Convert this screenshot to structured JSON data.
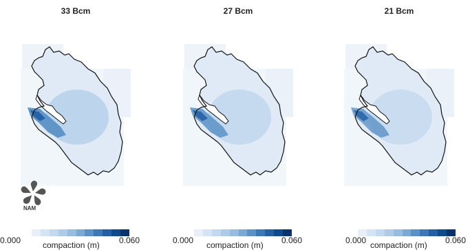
{
  "panels": [
    {
      "title": "33 Bcm",
      "intensity": 1.0
    },
    {
      "title": "27 Bcm",
      "intensity": 0.78
    },
    {
      "title": "21 Bcm",
      "intensity": 0.62
    }
  ],
  "colorbar": {
    "min_label": "0.000",
    "max_label": "0.060",
    "label": "compaction (m)",
    "colors": [
      "#e7eff9",
      "#d5e4f4",
      "#c3d9ef",
      "#aecce8",
      "#96bde0",
      "#7aa9d4",
      "#5b91c6",
      "#3d78b6",
      "#2360a3",
      "#0f4a8a",
      "#08336b"
    ]
  },
  "logo": {
    "text": "NAM",
    "icon": "nam-shell-logo-icon"
  }
}
